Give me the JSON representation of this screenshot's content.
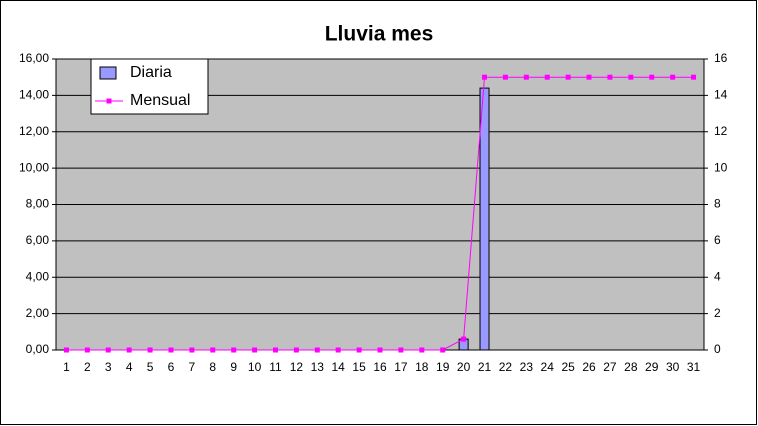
{
  "chart_data": {
    "type": "bar-line",
    "title": "Lluvia mes",
    "categories": [
      "1",
      "2",
      "3",
      "4",
      "5",
      "6",
      "7",
      "8",
      "9",
      "10",
      "11",
      "12",
      "13",
      "14",
      "15",
      "16",
      "17",
      "18",
      "19",
      "20",
      "21",
      "22",
      "23",
      "24",
      "25",
      "26",
      "27",
      "28",
      "29",
      "30",
      "31"
    ],
    "series": [
      {
        "name": "Diaria",
        "type": "bar",
        "color": "#9999ff",
        "values": [
          0,
          0,
          0,
          0,
          0,
          0,
          0,
          0,
          0,
          0,
          0,
          0,
          0,
          0,
          0,
          0,
          0,
          0,
          0,
          0.6,
          14.4,
          0,
          0,
          0,
          0,
          0,
          0,
          0,
          0,
          0,
          0
        ]
      },
      {
        "name": "Mensual",
        "type": "line",
        "axis": "y2",
        "color": "#ff00ff",
        "values": [
          0,
          0,
          0,
          0,
          0,
          0,
          0,
          0,
          0,
          0,
          0,
          0,
          0,
          0,
          0,
          0,
          0,
          0,
          0,
          0.6,
          15,
          15,
          15,
          15,
          15,
          15,
          15,
          15,
          15,
          15,
          15
        ]
      }
    ],
    "ylim": [
      0,
      16
    ],
    "yticks": [
      {
        "value": 0,
        "label": "0,00"
      },
      {
        "value": 2,
        "label": "2,00"
      },
      {
        "value": 4,
        "label": "4,00"
      },
      {
        "value": 6,
        "label": "6,00"
      },
      {
        "value": 8,
        "label": "8,00"
      },
      {
        "value": 10,
        "label": "10,00"
      },
      {
        "value": 12,
        "label": "12,00"
      },
      {
        "value": 14,
        "label": "14,00"
      },
      {
        "value": 16,
        "label": "16,00"
      }
    ],
    "y2lim": [
      0,
      16
    ],
    "y2ticks": [
      0,
      2,
      4,
      6,
      8,
      10,
      12,
      14,
      16
    ],
    "grid": true,
    "legend": "top-left"
  }
}
